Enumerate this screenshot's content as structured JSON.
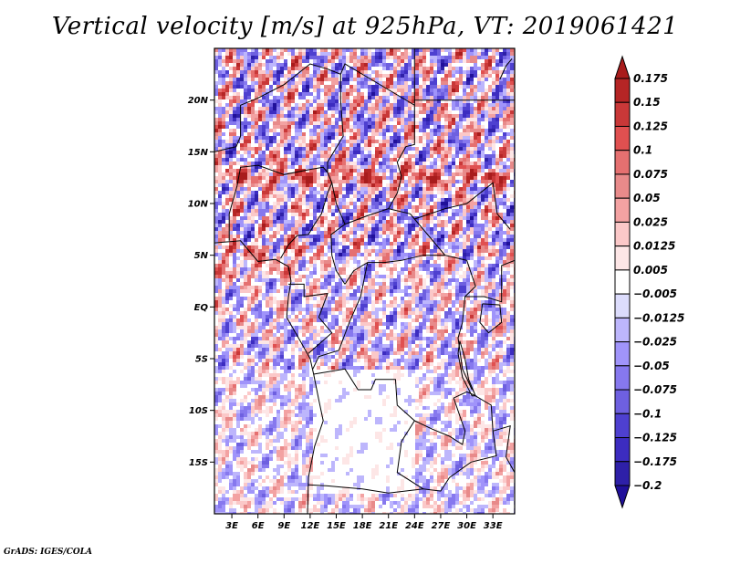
{
  "title": "Vertical velocity [m/s] at 925hPa, VT: 2019061421",
  "footer": "GrADS: IGES/COLA",
  "chart_data": {
    "type": "heatmap",
    "title": "Vertical velocity [m/s] at 925hPa, VT: 2019061421",
    "variable": "Vertical velocity",
    "units": "m/s",
    "level": "925hPa",
    "valid_time": "2019061421",
    "xlabel": "",
    "ylabel": "",
    "x_ticks": [
      "3E",
      "6E",
      "9E",
      "12E",
      "15E",
      "18E",
      "21E",
      "24E",
      "27E",
      "30E",
      "33E"
    ],
    "x_tick_values": [
      3,
      6,
      9,
      12,
      15,
      18,
      21,
      24,
      27,
      30,
      33
    ],
    "y_ticks": [
      "20N",
      "15N",
      "10N",
      "5N",
      "EQ",
      "5S",
      "10S",
      "15S"
    ],
    "y_tick_values": [
      20,
      15,
      10,
      5,
      0,
      -5,
      -10,
      -15
    ],
    "xlim": [
      1,
      35.5
    ],
    "ylim": [
      -20,
      25
    ],
    "grid": false,
    "colorbar": {
      "placement": "right",
      "extend": "both",
      "levels": [
        0.175,
        0.15,
        0.125,
        0.1,
        0.075,
        0.05,
        0.025,
        0.0125,
        0.005,
        -0.005,
        -0.0125,
        -0.025,
        -0.05,
        -0.075,
        -0.1,
        -0.125,
        -0.175,
        -0.2
      ],
      "labels": [
        "0.175",
        "0.15",
        "0.125",
        "0.1",
        "0.075",
        "0.05",
        "0.025",
        "0.0125",
        "0.005",
        "−0.005",
        "−0.0125",
        "−0.025",
        "−0.05",
        "−0.075",
        "−0.1",
        "−0.125",
        "−0.175",
        "−0.2"
      ],
      "colors_top_to_bottom": [
        "#a81c1c",
        "#b52525",
        "#c93838",
        "#e05050",
        "#e57070",
        "#e88a8a",
        "#f3a2a2",
        "#fbc8c8",
        "#fde6e6",
        "#ffffff",
        "#dcdcfc",
        "#bdb6fc",
        "#a094fa",
        "#8678ee",
        "#6e60e0",
        "#4e40d0",
        "#3c2cc0",
        "#2e20a8",
        "#20109a"
      ]
    },
    "notable_features": [
      "Strong positive (red) band along ~12-13N across Niger/Chad",
      "Mixed blue/red small-scale structure over Sahel and Sahara",
      "Near-zero (white) region over Angola / Zambia plateau",
      "Coastal Gulf of Guinea shows positive values"
    ]
  }
}
